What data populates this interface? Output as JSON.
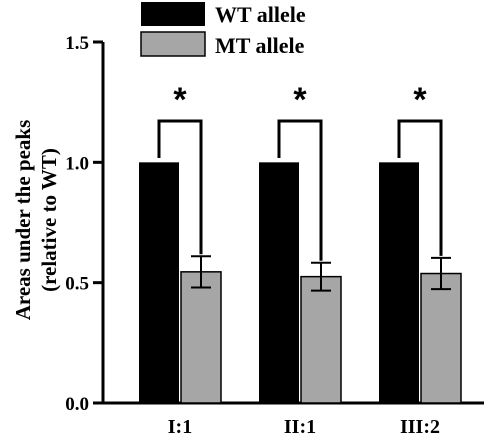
{
  "chart_data": {
    "type": "bar",
    "categories": [
      "I:1",
      "II:1",
      "III:2"
    ],
    "series": [
      {
        "name": "WT allele",
        "values": [
          1.0,
          1.0,
          1.0
        ],
        "errors": [
          0,
          0,
          0
        ],
        "color": "#000000"
      },
      {
        "name": "MT allele",
        "values": [
          0.545,
          0.525,
          0.538
        ],
        "errors": [
          0.065,
          0.058,
          0.065
        ],
        "color": "#a6a6a6"
      }
    ],
    "ylabel_line1": "Areas under the peaks",
    "ylabel_line2": "(relative to WT)",
    "ylim": [
      0,
      1.5
    ],
    "yticks": [
      0.0,
      0.5,
      1.0,
      1.5
    ],
    "ytick_labels": [
      "0.0",
      "0.5",
      "1.0",
      "1.5"
    ],
    "significance_marks": [
      "*",
      "*",
      "*"
    ],
    "legend_position": "top"
  }
}
